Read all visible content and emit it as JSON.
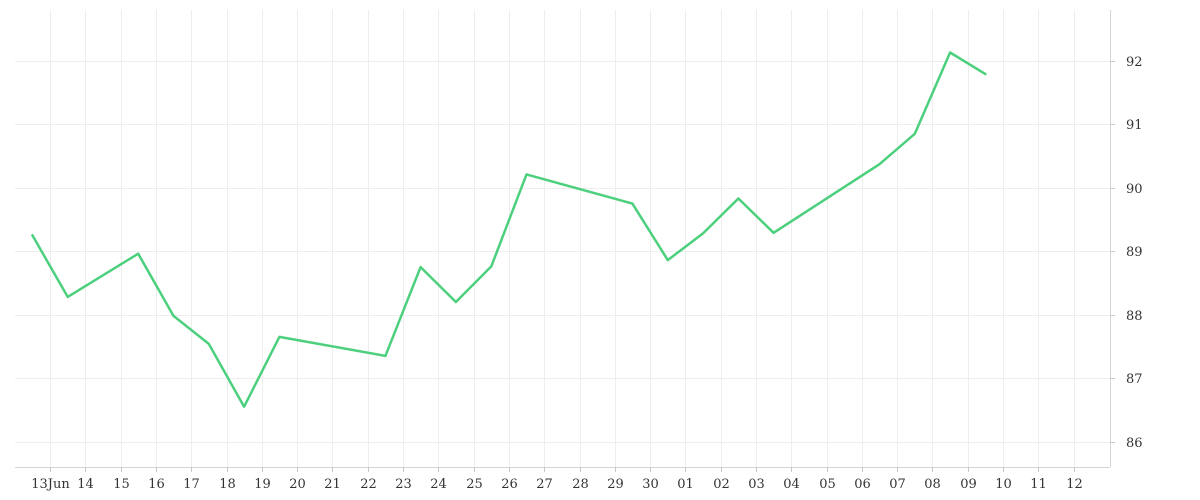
{
  "chart_data": {
    "type": "line",
    "x_tick_labels": [
      "13Jun",
      "14",
      "15",
      "16",
      "17",
      "18",
      "19",
      "20",
      "21",
      "22",
      "23",
      "24",
      "25",
      "26",
      "27",
      "28",
      "29",
      "30",
      "01",
      "02",
      "03",
      "04",
      "05",
      "06",
      "07",
      "08",
      "09",
      "10",
      "11",
      "12"
    ],
    "y_ticks": [
      86,
      87,
      88,
      89,
      90,
      91,
      92
    ],
    "ylim": [
      85.6,
      92.8
    ],
    "grid": true,
    "line_color": "#4cd07d",
    "series": [
      {
        "x": [
          "13Jun",
          "14",
          "16",
          "17",
          "18",
          "19",
          "20",
          "23",
          "24",
          "25",
          "26",
          "27",
          "30",
          "01",
          "02",
          "03",
          "04",
          "07",
          "08",
          "09",
          "10"
        ],
        "values": [
          89.25,
          88.28,
          88.96,
          87.98,
          87.54,
          86.55,
          87.65,
          87.35,
          88.75,
          88.2,
          88.76,
          90.21,
          89.75,
          88.86,
          89.28,
          89.83,
          89.29,
          90.37,
          90.85,
          92.13,
          91.79
        ]
      }
    ]
  }
}
